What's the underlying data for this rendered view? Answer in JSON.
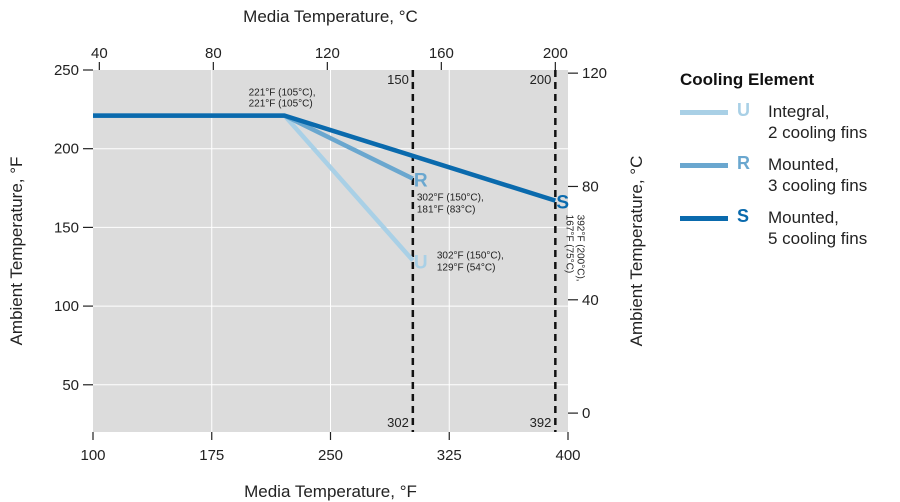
{
  "chart_data": {
    "type": "line",
    "xlabel_bottom": "Media Temperature, °F",
    "xlabel_top": "Media Temperature, °C",
    "ylabel_left": "Ambient Temperature, °F",
    "ylabel_right": "Ambient Temperature, °C",
    "xlim": [
      100,
      400
    ],
    "ylim": [
      20,
      250
    ],
    "x_ticks_bottom": [
      100,
      175,
      250,
      325,
      400
    ],
    "y_ticks_left": [
      50,
      100,
      150,
      200,
      250
    ],
    "x_ticks_top_c": [
      40,
      80,
      120,
      160,
      200
    ],
    "y_ticks_right_c": [
      0,
      40,
      80,
      120
    ],
    "grid": true,
    "background": "#dcdcdc",
    "series": [
      {
        "code": "U",
        "name_lines": [
          "Integral,",
          "2 cooling fins"
        ],
        "color": "#a9d0e6",
        "x": [
          100,
          221,
          302
        ],
        "y": [
          221,
          221,
          129
        ]
      },
      {
        "code": "R",
        "name_lines": [
          "Mounted,",
          "3 cooling fins"
        ],
        "color": "#6aa7cf",
        "x": [
          100,
          221,
          302
        ],
        "y": [
          221,
          221,
          181
        ]
      },
      {
        "code": "S",
        "name_lines": [
          "Mounted,",
          "5 cooling fins"
        ],
        "color": "#0a6aad",
        "x": [
          100,
          221,
          392
        ],
        "y": [
          221,
          221,
          167
        ]
      }
    ],
    "vlines": [
      {
        "x": 302,
        "top_label": "150",
        "bottom_label": "302"
      },
      {
        "x": 392,
        "top_label": "200",
        "bottom_label": "392"
      }
    ],
    "annotations": [
      {
        "lines": [
          "221°F (105°C),",
          "221°F (105°C)"
        ]
      },
      {
        "lines": [
          "302°F (150°C),",
          "181°F (83°C)"
        ]
      },
      {
        "lines": [
          "302°F (150°C),",
          "129°F (54°C)"
        ]
      },
      {
        "lines": [
          "392°F (200°C),",
          "167°F (75°C)"
        ]
      }
    ],
    "legend": {
      "title": "Cooling Element",
      "position": "right"
    }
  }
}
